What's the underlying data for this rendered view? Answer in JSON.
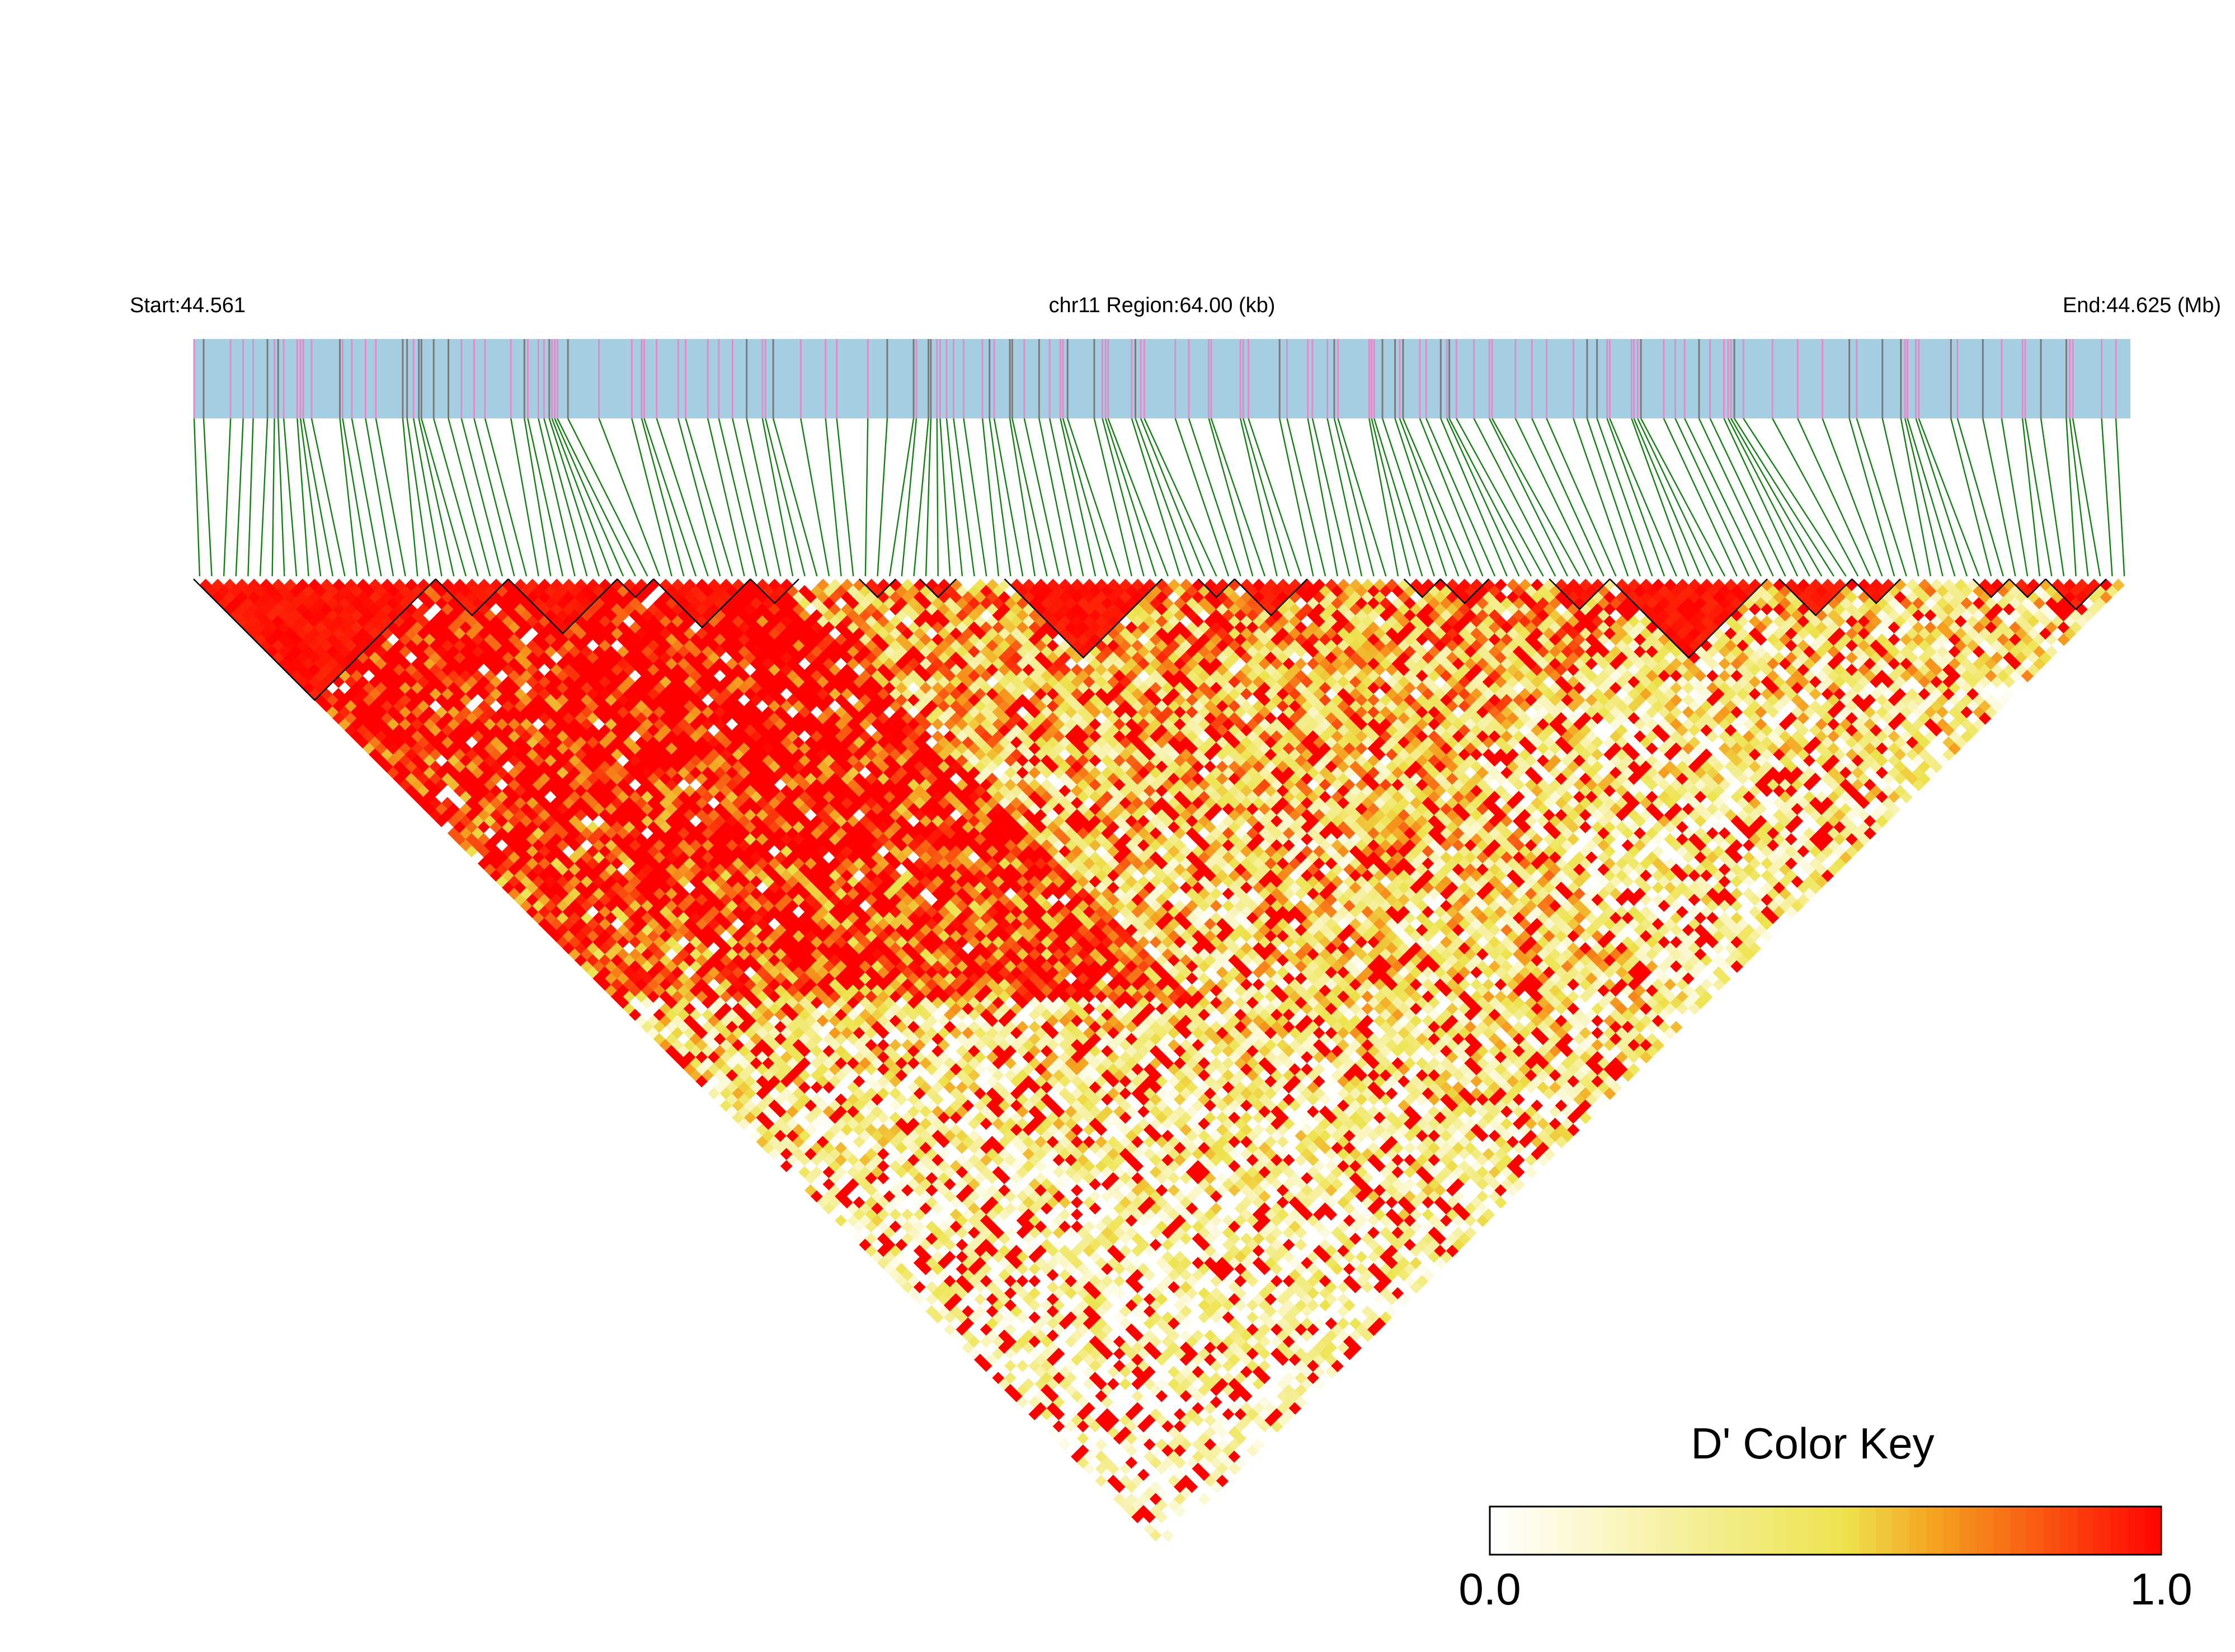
{
  "chart_data": {
    "type": "heatmap",
    "title": "",
    "header": {
      "start_label": "Start:44.561",
      "region_label": "chr11 Region:64.00 (kb)",
      "end_label": "End:44.625 (Mb)"
    },
    "chromosome": "chr11",
    "region_kb": 64.0,
    "start_mb": 44.561,
    "end_mb": 44.625,
    "n_snps": 160,
    "matrix": "pairwise D' between SNPs (lower triangle, rotated 45 degrees)",
    "color_key": {
      "title": "D' Color Key",
      "min_label": "0.0",
      "max_label": "1.0",
      "min": 0.0,
      "max": 1.0,
      "stops": [
        "#ffffff",
        "#f7f1a6",
        "#ede34e",
        "#f5a020",
        "#ff0000"
      ]
    },
    "colors": {
      "track_bg": "#a6cee3",
      "snp_line_pink": "#e58ac8",
      "snp_line_dark": "#7a7a7a",
      "connector": "#118011",
      "high_ld": "#ff0000",
      "block_outline": "#000000"
    }
  }
}
